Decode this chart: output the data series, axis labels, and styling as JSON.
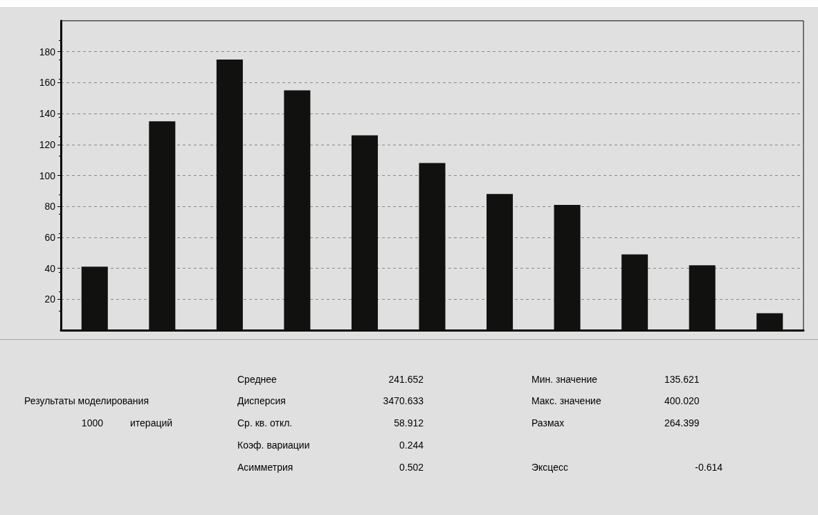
{
  "chart_data": [
    {
      "type": "bar",
      "categories": [
        null,
        null,
        null,
        null,
        null,
        null,
        null,
        null,
        null,
        null,
        null
      ],
      "values": [
        41,
        135,
        175,
        155,
        126,
        108,
        88,
        81,
        49,
        42,
        11
      ],
      "color": "#111210",
      "ylim": [
        0,
        200
      ],
      "yticks": [
        20,
        40,
        60,
        80,
        100,
        120,
        140,
        160,
        180
      ],
      "grid": "y",
      "tick_labels": "y"
    },
    {
      "type": "other",
      "annotations": [
        "Результаты моделирования",
        "1000",
        "итераций",
        "Среднее",
        "241.652",
        "Дисперсия",
        "3470.633",
        "Ср. кв. откл.",
        "58.912",
        "Коэф. вариации",
        "0.244",
        "Асимметрия",
        "0.502",
        "Мин. значение",
        "135.621",
        "Макс. значение",
        "400.020",
        "Размах",
        "264.399",
        "Эксцесс",
        "-0.614"
      ]
    }
  ]
}
